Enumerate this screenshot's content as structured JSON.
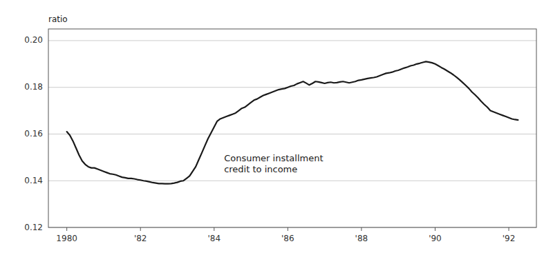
{
  "chart_data": {
    "type": "line",
    "y_label": "ratio",
    "annotation": "Consumer installment\ncredit to income",
    "color": "#1a1a1a",
    "grid": true,
    "xlim": [
      1979.5,
      1992.75
    ],
    "ylim": [
      0.12,
      0.205
    ],
    "yticks": [
      0.12,
      0.14,
      0.16,
      0.18,
      {
        "value": 0.2,
        "label": "0.20"
      }
    ],
    "xticks": [
      1980,
      {
        "value": 1982,
        "label": "'82"
      },
      {
        "value": 1984,
        "label": "'84"
      },
      {
        "value": 1986,
        "label": "'86"
      },
      {
        "value": 1988,
        "label": "'88"
      },
      {
        "value": 1990,
        "label": "'90"
      },
      {
        "value": 1992,
        "label": "'92"
      }
    ],
    "x": [
      1980.0,
      1980.083,
      1980.167,
      1980.25,
      1980.333,
      1980.417,
      1980.5,
      1980.583,
      1980.667,
      1980.75,
      1980.833,
      1980.917,
      1981.0,
      1981.083,
      1981.167,
      1981.25,
      1981.333,
      1981.417,
      1981.5,
      1981.583,
      1981.667,
      1981.75,
      1981.833,
      1981.917,
      1982.0,
      1982.083,
      1982.167,
      1982.25,
      1982.333,
      1982.417,
      1982.5,
      1982.583,
      1982.667,
      1982.75,
      1982.833,
      1982.917,
      1983.0,
      1983.083,
      1983.167,
      1983.25,
      1983.333,
      1983.417,
      1983.5,
      1983.583,
      1983.667,
      1983.75,
      1983.833,
      1983.917,
      1984.0,
      1984.083,
      1984.167,
      1984.25,
      1984.333,
      1984.417,
      1984.5,
      1984.583,
      1984.667,
      1984.75,
      1984.833,
      1984.917,
      1985.0,
      1985.083,
      1985.167,
      1985.25,
      1985.333,
      1985.417,
      1985.5,
      1985.583,
      1985.667,
      1985.75,
      1985.833,
      1985.917,
      1986.0,
      1986.083,
      1986.167,
      1986.25,
      1986.333,
      1986.417,
      1986.5,
      1986.583,
      1986.667,
      1986.75,
      1986.833,
      1986.917,
      1987.0,
      1987.083,
      1987.167,
      1987.25,
      1987.333,
      1987.417,
      1987.5,
      1987.583,
      1987.667,
      1987.75,
      1987.833,
      1987.917,
      1988.0,
      1988.083,
      1988.167,
      1988.25,
      1988.333,
      1988.417,
      1988.5,
      1988.583,
      1988.667,
      1988.75,
      1988.833,
      1988.917,
      1989.0,
      1989.083,
      1989.167,
      1989.25,
      1989.333,
      1989.417,
      1989.5,
      1989.583,
      1989.667,
      1989.75,
      1989.833,
      1989.917,
      1990.0,
      1990.083,
      1990.167,
      1990.25,
      1990.333,
      1990.417,
      1990.5,
      1990.583,
      1990.667,
      1990.75,
      1990.833,
      1990.917,
      1991.0,
      1991.083,
      1991.167,
      1991.25,
      1991.333,
      1991.417,
      1991.5,
      1991.583,
      1991.667,
      1991.75,
      1991.833,
      1991.917,
      1992.0,
      1992.083,
      1992.167,
      1992.25
    ],
    "values": [
      0.161,
      0.1595,
      0.157,
      0.154,
      0.151,
      0.1485,
      0.147,
      0.146,
      0.1455,
      0.1455,
      0.145,
      0.1445,
      0.144,
      0.1435,
      0.143,
      0.1428,
      0.1425,
      0.142,
      0.1415,
      0.1413,
      0.141,
      0.141,
      0.1408,
      0.1405,
      0.1403,
      0.14,
      0.1398,
      0.1395,
      0.1392,
      0.139,
      0.1388,
      0.1388,
      0.1387,
      0.1387,
      0.1388,
      0.139,
      0.1393,
      0.1398,
      0.14,
      0.141,
      0.142,
      0.144,
      0.146,
      0.149,
      0.152,
      0.155,
      0.158,
      0.1605,
      0.163,
      0.1655,
      0.1665,
      0.167,
      0.1675,
      0.168,
      0.1685,
      0.169,
      0.17,
      0.171,
      0.1715,
      0.1725,
      0.1735,
      0.1745,
      0.175,
      0.1758,
      0.1765,
      0.177,
      0.1775,
      0.178,
      0.1785,
      0.179,
      0.1793,
      0.1795,
      0.18,
      0.1805,
      0.1808,
      0.1815,
      0.182,
      0.1825,
      0.1818,
      0.181,
      0.1817,
      0.1825,
      0.1823,
      0.182,
      0.1817,
      0.182,
      0.1822,
      0.1819,
      0.182,
      0.1823,
      0.1825,
      0.1822,
      0.1819,
      0.1822,
      0.1825,
      0.183,
      0.1832,
      0.1835,
      0.1838,
      0.184,
      0.1842,
      0.1845,
      0.185,
      0.1855,
      0.186,
      0.1862,
      0.1865,
      0.187,
      0.1873,
      0.1878,
      0.1883,
      0.1887,
      0.1892,
      0.1895,
      0.19,
      0.1903,
      0.1907,
      0.191,
      0.1908,
      0.1905,
      0.19,
      0.1893,
      0.1885,
      0.1878,
      0.187,
      0.1862,
      0.1853,
      0.1843,
      0.1832,
      0.182,
      0.1808,
      0.1795,
      0.178,
      0.1768,
      0.1755,
      0.174,
      0.1727,
      0.1715,
      0.17,
      0.1695,
      0.169,
      0.1685,
      0.168,
      0.1675,
      0.167,
      0.1665,
      0.1662,
      0.166
    ]
  }
}
